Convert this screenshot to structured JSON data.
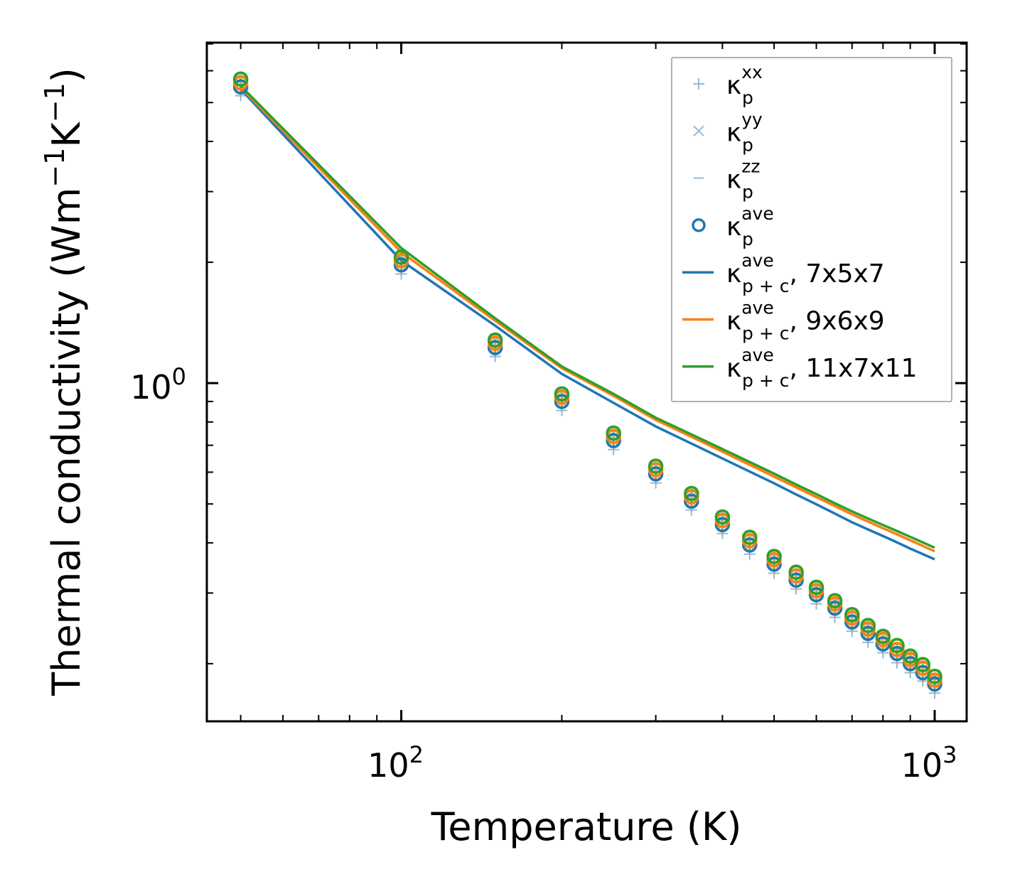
{
  "chart_data": {
    "type": "scatter",
    "xscale": "log",
    "yscale": "log",
    "xlabel": "Temperature (K)",
    "ylabel": {
      "base": "Thermal conductivity (Wm",
      "exp1": "−1",
      "mid": "K",
      "exp2": "−1",
      "end": ")"
    },
    "xlim": [
      43.2,
      1148
    ],
    "ylim": [
      0.1437,
      7.05
    ],
    "xticks": [
      {
        "value": 100,
        "base": "10",
        "exp": "2"
      },
      {
        "value": 1000,
        "base": "10",
        "exp": "3"
      }
    ],
    "yticks": [
      {
        "value": 1,
        "base": "10",
        "exp": "0"
      }
    ],
    "legend_position": "upper-right",
    "x": [
      50,
      100,
      150,
      200,
      250,
      300,
      350,
      400,
      450,
      500,
      550,
      600,
      650,
      700,
      750,
      800,
      850,
      900,
      950,
      1000
    ],
    "colors": {
      "blue": "#1f77b4",
      "orange": "#ff7f0e",
      "green": "#2ca02c"
    },
    "grids": [
      {
        "name": "7x5x7",
        "color": "#1f77b4",
        "xx": [
          5.2,
          1.87,
          1.165,
          0.855,
          0.683,
          0.564,
          0.483,
          0.422,
          0.375,
          0.336,
          0.307,
          0.282,
          0.261,
          0.241,
          0.226,
          0.213,
          0.201,
          0.19,
          0.181,
          0.169
        ],
        "yy": [
          5.47,
          1.97,
          1.226,
          0.9,
          0.719,
          0.594,
          0.508,
          0.444,
          0.395,
          0.354,
          0.323,
          0.297,
          0.275,
          0.254,
          0.238,
          0.224,
          0.212,
          0.2,
          0.19,
          0.178
        ],
        "zz": [
          5.63,
          2.03,
          1.263,
          0.927,
          0.741,
          0.612,
          0.523,
          0.457,
          0.407,
          0.365,
          0.333,
          0.306,
          0.283,
          0.262,
          0.245,
          0.231,
          0.218,
          0.206,
          0.196,
          0.183
        ],
        "ave": [
          5.47,
          1.97,
          1.226,
          0.9,
          0.719,
          0.594,
          0.508,
          0.444,
          0.395,
          0.354,
          0.323,
          0.297,
          0.275,
          0.254,
          0.238,
          0.224,
          0.212,
          0.2,
          0.19,
          0.178
        ],
        "ave_pc": [
          5.4,
          2.02,
          1.39,
          1.054,
          0.893,
          0.78,
          0.707,
          0.649,
          0.602,
          0.563,
          0.528,
          0.499,
          0.473,
          0.45,
          0.432,
          0.416,
          0.401,
          0.387,
          0.375,
          0.364
        ]
      },
      {
        "name": "9x6x9",
        "color": "#ff7f0e",
        "xx": [
          5.32,
          1.92,
          1.194,
          0.877,
          0.7,
          0.579,
          0.495,
          0.432,
          0.385,
          0.345,
          0.314,
          0.289,
          0.268,
          0.247,
          0.232,
          0.219,
          0.206,
          0.195,
          0.185,
          0.173
        ],
        "yy": [
          5.6,
          2.02,
          1.257,
          0.923,
          0.737,
          0.609,
          0.521,
          0.455,
          0.405,
          0.363,
          0.331,
          0.304,
          0.282,
          0.26,
          0.244,
          0.23,
          0.217,
          0.205,
          0.195,
          0.182
        ],
        "zz": [
          5.77,
          2.08,
          1.295,
          0.951,
          0.759,
          0.627,
          0.537,
          0.469,
          0.417,
          0.374,
          0.341,
          0.313,
          0.29,
          0.268,
          0.251,
          0.237,
          0.224,
          0.211,
          0.201,
          0.187
        ],
        "ave": [
          5.6,
          2.02,
          1.257,
          0.923,
          0.737,
          0.609,
          0.521,
          0.455,
          0.405,
          0.363,
          0.331,
          0.304,
          0.282,
          0.26,
          0.244,
          0.23,
          0.217,
          0.205,
          0.195,
          0.182
        ],
        "ave_pc": [
          5.45,
          2.12,
          1.43,
          1.09,
          0.93,
          0.81,
          0.735,
          0.675,
          0.626,
          0.585,
          0.55,
          0.52,
          0.494,
          0.471,
          0.452,
          0.435,
          0.42,
          0.406,
          0.393,
          0.381
        ]
      },
      {
        "name": "11x7x11",
        "color": "#2ca02c",
        "xx": [
          5.43,
          1.96,
          1.216,
          0.893,
          0.713,
          0.59,
          0.504,
          0.441,
          0.392,
          0.352,
          0.321,
          0.295,
          0.273,
          0.252,
          0.237,
          0.222,
          0.211,
          0.199,
          0.189,
          0.177
        ],
        "yy": [
          5.72,
          2.06,
          1.28,
          0.94,
          0.751,
          0.621,
          0.531,
          0.464,
          0.413,
          0.37,
          0.338,
          0.31,
          0.287,
          0.265,
          0.249,
          0.234,
          0.222,
          0.209,
          0.199,
          0.186
        ],
        "zz": [
          5.89,
          2.12,
          1.318,
          0.968,
          0.774,
          0.64,
          0.547,
          0.478,
          0.425,
          0.381,
          0.348,
          0.319,
          0.296,
          0.273,
          0.256,
          0.241,
          0.229,
          0.215,
          0.205,
          0.192
        ],
        "ave": [
          5.72,
          2.06,
          1.28,
          0.94,
          0.751,
          0.621,
          0.531,
          0.464,
          0.413,
          0.37,
          0.338,
          0.31,
          0.287,
          0.265,
          0.249,
          0.234,
          0.222,
          0.209,
          0.199,
          0.186
        ],
        "ave_pc": [
          5.5,
          2.17,
          1.45,
          1.1,
          0.94,
          0.82,
          0.745,
          0.685,
          0.636,
          0.595,
          0.559,
          0.529,
          0.502,
          0.479,
          0.46,
          0.443,
          0.428,
          0.414,
          0.401,
          0.389
        ]
      }
    ],
    "legend": [
      {
        "marker": "plus",
        "color": "#8fbcdb",
        "kappa": "κ",
        "sup": "xx",
        "sub": "p",
        "suffix": ""
      },
      {
        "marker": "x",
        "color": "#8fbcdb",
        "kappa": "κ",
        "sup": "yy",
        "sub": "p",
        "suffix": ""
      },
      {
        "marker": "dash",
        "color": "#8fbcdb",
        "kappa": "κ",
        "sup": "zz",
        "sub": "p",
        "suffix": ""
      },
      {
        "marker": "circle",
        "color": "#1f77b4",
        "kappa": "κ",
        "sup": "ave",
        "sub": "p",
        "suffix": ""
      },
      {
        "marker": "line",
        "color": "#1f77b4",
        "kappa": "κ",
        "sup": "ave",
        "sub": "p + c",
        "suffix": ", 7x5x7"
      },
      {
        "marker": "line",
        "color": "#ff7f0e",
        "kappa": "κ",
        "sup": "ave",
        "sub": "p + c",
        "suffix": ", 9x6x9"
      },
      {
        "marker": "line",
        "color": "#2ca02c",
        "kappa": "κ",
        "sup": "ave",
        "sub": "p + c",
        "suffix": ", 11x7x11"
      }
    ]
  }
}
